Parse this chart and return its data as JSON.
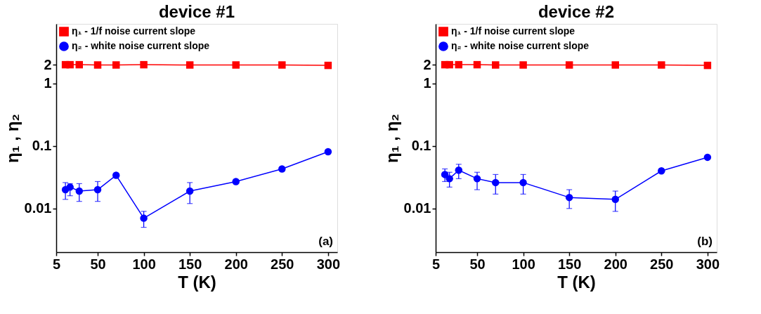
{
  "chart_data": [
    {
      "type": "line",
      "title": "device #1",
      "xlabel": "T (K)",
      "ylabel": "η₁ , η₂",
      "x": [
        15,
        20,
        30,
        50,
        70,
        100,
        150,
        200,
        250,
        300
      ],
      "xlim": [
        5,
        310
      ],
      "xticks": [
        5,
        50,
        100,
        150,
        200,
        250,
        300
      ],
      "ylim": [
        0.002,
        9
      ],
      "yticks": [
        0.01,
        0.1,
        1,
        2
      ],
      "log": "y",
      "grid": false,
      "legend": "top left",
      "annotations": [
        "(a)"
      ],
      "series": [
        {
          "name": "η₁ - 1/f noise current slope",
          "color": "#ff0000",
          "marker": "square",
          "values": [
            2,
            2,
            2,
            1.98,
            1.98,
            2,
            1.98,
            1.98,
            1.98,
            1.95
          ]
        },
        {
          "name": "η₂ - white noise current slope",
          "color": "#0000ff",
          "marker": "circle",
          "values": [
            0.02,
            0.022,
            0.019,
            0.02,
            0.034,
            0.007,
            0.019,
            0.027,
            0.043,
            0.081
          ],
          "errors": [
            [
              0.014,
              0.026
            ],
            [
              0.016,
              0.025
            ],
            [
              0.013,
              0.025
            ],
            [
              0.013,
              0.027
            ],
            null,
            [
              0.005,
              0.009
            ],
            [
              0.012,
              0.026
            ],
            null,
            null,
            null
          ]
        }
      ]
    },
    {
      "type": "line",
      "title": "device #2",
      "xlabel": "T (K)",
      "ylabel": "η₁ , η₂",
      "x": [
        15,
        20,
        30,
        50,
        70,
        100,
        150,
        200,
        250,
        300
      ],
      "xlim": [
        5,
        310
      ],
      "xticks": [
        5,
        50,
        100,
        150,
        200,
        250,
        300
      ],
      "ylim": [
        0.002,
        9
      ],
      "yticks": [
        0.01,
        0.1,
        1,
        2
      ],
      "log": "y",
      "grid": false,
      "legend": "top left",
      "annotations": [
        "(b)"
      ],
      "series": [
        {
          "name": "η₁ - 1/f noise current slope",
          "color": "#ff0000",
          "marker": "square",
          "values": [
            2,
            2,
            2,
            2,
            1.98,
            1.98,
            1.98,
            1.98,
            1.98,
            1.95
          ]
        },
        {
          "name": "η₂ - white noise current slope",
          "color": "#0000ff",
          "marker": "circle",
          "values": [
            0.035,
            0.03,
            0.041,
            0.03,
            0.026,
            0.026,
            0.015,
            0.014,
            0.04,
            0.066
          ],
          "errors": [
            [
              0.027,
              0.043
            ],
            [
              0.022,
              0.038
            ],
            [
              0.03,
              0.051
            ],
            [
              0.02,
              0.038
            ],
            [
              0.017,
              0.035
            ],
            [
              0.017,
              0.035
            ],
            [
              0.01,
              0.02
            ],
            [
              0.009,
              0.019
            ],
            null,
            null
          ]
        }
      ]
    }
  ]
}
